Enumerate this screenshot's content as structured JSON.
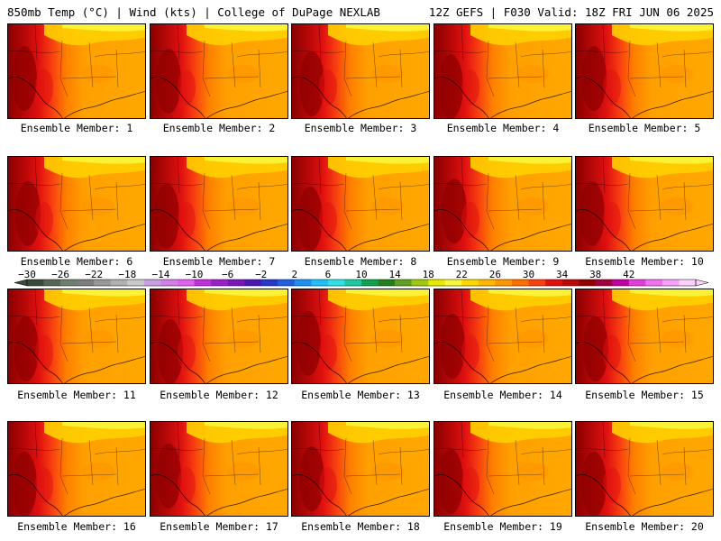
{
  "header": {
    "left_title": "850mb Temp (°C) | Wind (kts) | College of DuPage NEXLAB",
    "right_title": "12Z GEFS | F030 Valid: 18Z FRI JUN 06 2025"
  },
  "members": [
    {
      "label": "Ensemble Member: 1"
    },
    {
      "label": "Ensemble Member: 2"
    },
    {
      "label": "Ensemble Member: 3"
    },
    {
      "label": "Ensemble Member: 4"
    },
    {
      "label": "Ensemble Member: 5"
    },
    {
      "label": "Ensemble Member: 6"
    },
    {
      "label": "Ensemble Member: 7"
    },
    {
      "label": "Ensemble Member: 8"
    },
    {
      "label": "Ensemble Member: 9"
    },
    {
      "label": "Ensemble Member: 10"
    },
    {
      "label": "Ensemble Member: 11"
    },
    {
      "label": "Ensemble Member: 12"
    },
    {
      "label": "Ensemble Member: 13"
    },
    {
      "label": "Ensemble Member: 14"
    },
    {
      "label": "Ensemble Member: 15"
    },
    {
      "label": "Ensemble Member: 16"
    },
    {
      "label": "Ensemble Member: 17"
    },
    {
      "label": "Ensemble Member: 18"
    },
    {
      "label": "Ensemble Member: 19"
    },
    {
      "label": "Ensemble Member: 20"
    }
  ],
  "colorbar": {
    "labels": [
      "-30",
      "-26",
      "-22",
      "-18",
      "-14",
      "-10",
      "-6",
      "-2",
      "2",
      "6",
      "10",
      "14",
      "18",
      "22",
      "26",
      "30",
      "34",
      "38",
      "42"
    ],
    "colors": [
      "#3a4a3a",
      "#556655",
      "#6f7f6f",
      "#7d7d7d",
      "#989898",
      "#b0b0b0",
      "#c9c9c9",
      "#c8a0e0",
      "#d47fe6",
      "#e060f0",
      "#c030d8",
      "#9a20c8",
      "#7818b8",
      "#4a18b0",
      "#2838c8",
      "#2060e0",
      "#1e90f0",
      "#20c0f8",
      "#30e0e8",
      "#20c8a0",
      "#10a050",
      "#208020",
      "#60a020",
      "#a0c810",
      "#e8e800",
      "#f8f840",
      "#ffd800",
      "#ffb800",
      "#ff9800",
      "#ff7000",
      "#f84010",
      "#e01010",
      "#b80808",
      "#900000",
      "#a00040",
      "#c000a0",
      "#e040d8",
      "#f070f0",
      "#f8a0f8",
      "#fcd0fc"
    ]
  }
}
